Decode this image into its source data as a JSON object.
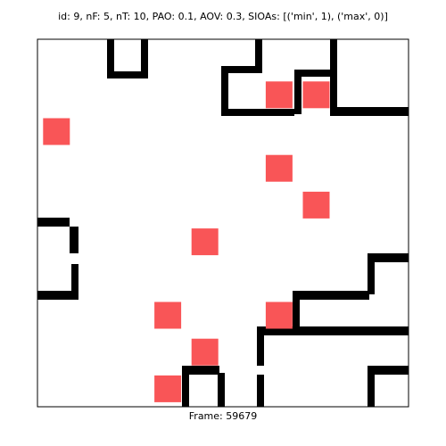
{
  "header": {
    "text": "id: 9, nF: 5, nT: 10, PAO: 0.1, AOV: 0.3, SIOAs: [('min', 1), ('max', 0)]"
  },
  "footer": {
    "frame_text": "Frame: 59679"
  },
  "colors": {
    "background": "#ffffff",
    "wall": "#000000",
    "target": "#f95557",
    "border": "#000000"
  },
  "board": {
    "cols": 10,
    "rows": 10,
    "targets": [
      {
        "col": 6,
        "row": 1
      },
      {
        "col": 7,
        "row": 1
      },
      {
        "col": 0,
        "row": 2
      },
      {
        "col": 6,
        "row": 3
      },
      {
        "col": 7,
        "row": 4
      },
      {
        "col": 4,
        "row": 5
      },
      {
        "col": 3,
        "row": 7
      },
      {
        "col": 6,
        "row": 7
      },
      {
        "col": 4,
        "row": 8
      },
      {
        "col": 3,
        "row": 9
      }
    ]
  }
}
